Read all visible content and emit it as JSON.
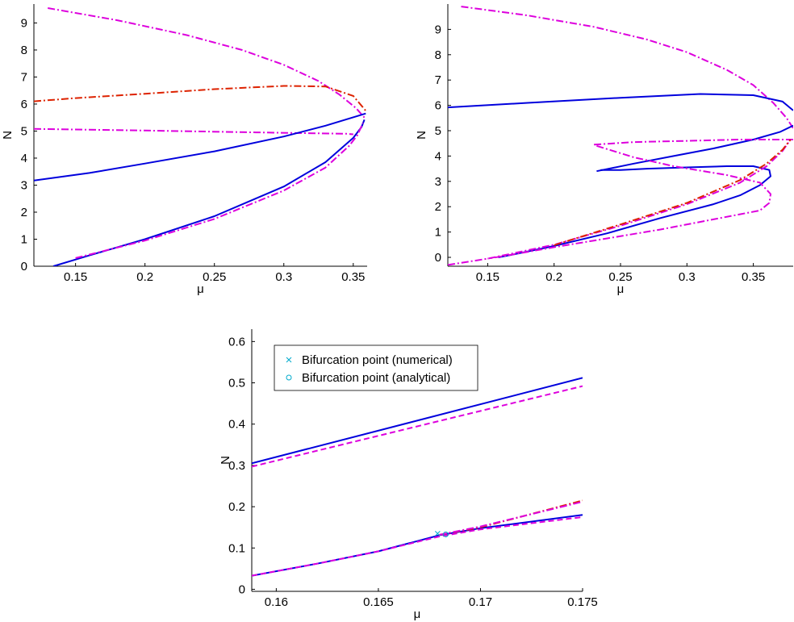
{
  "colors": {
    "blue": "#0000dd",
    "magenta": "#dd00dd",
    "red": "#dd2200",
    "cyan": "#00aacc"
  },
  "chart_data": [
    {
      "type": "line",
      "xlabel": "μ",
      "ylabel": "N",
      "xlim": [
        0.12,
        0.36
      ],
      "ylim": [
        0,
        9.7
      ],
      "xticks": [
        "0.15",
        "0.2",
        "0.25",
        "0.3",
        "0.35"
      ],
      "yticks": [
        "0",
        "1",
        "2",
        "3",
        "4",
        "5",
        "6",
        "7",
        "8",
        "9"
      ],
      "series": [
        {
          "style": "dashdot",
          "color": "magenta",
          "points": [
            [
              0.13,
              9.55
            ],
            [
              0.18,
              9.1
            ],
            [
              0.23,
              8.55
            ],
            [
              0.27,
              8.0
            ],
            [
              0.3,
              7.45
            ],
            [
              0.325,
              6.85
            ],
            [
              0.34,
              6.35
            ],
            [
              0.352,
              5.85
            ],
            [
              0.358,
              5.5
            ]
          ]
        },
        {
          "style": "dashdot",
          "color": "red",
          "points": [
            [
              0.12,
              6.1
            ],
            [
              0.15,
              6.22
            ],
            [
              0.2,
              6.38
            ],
            [
              0.25,
              6.55
            ],
            [
              0.3,
              6.67
            ],
            [
              0.33,
              6.65
            ],
            [
              0.35,
              6.3
            ],
            [
              0.359,
              5.75
            ]
          ]
        },
        {
          "style": "dashdot",
          "color": "magenta",
          "points": [
            [
              0.12,
              5.08
            ],
            [
              0.2,
              5.02
            ],
            [
              0.28,
              4.95
            ],
            [
              0.345,
              4.9
            ],
            [
              0.35,
              4.88
            ]
          ]
        },
        {
          "style": "solid",
          "color": "blue",
          "points": [
            [
              0.12,
              3.17
            ],
            [
              0.16,
              3.45
            ],
            [
              0.2,
              3.8
            ],
            [
              0.25,
              4.25
            ],
            [
              0.3,
              4.8
            ],
            [
              0.33,
              5.2
            ],
            [
              0.359,
              5.65
            ]
          ]
        },
        {
          "style": "solid",
          "color": "blue",
          "points": [
            [
              0.134,
              0.0
            ],
            [
              0.16,
              0.4
            ],
            [
              0.2,
              1.0
            ],
            [
              0.25,
              1.85
            ],
            [
              0.3,
              2.95
            ],
            [
              0.33,
              3.85
            ],
            [
              0.35,
              4.75
            ],
            [
              0.356,
              5.15
            ],
            [
              0.358,
              5.42
            ]
          ]
        },
        {
          "style": "dashdot",
          "color": "magenta",
          "points": [
            [
              0.15,
              0.3
            ],
            [
              0.2,
              0.95
            ],
            [
              0.25,
              1.75
            ],
            [
              0.3,
              2.8
            ],
            [
              0.33,
              3.65
            ],
            [
              0.347,
              4.45
            ],
            [
              0.353,
              4.85
            ],
            [
              0.357,
              5.3
            ]
          ]
        }
      ]
    },
    {
      "type": "line",
      "xlabel": "μ",
      "ylabel": "N",
      "xlim": [
        0.12,
        0.38
      ],
      "ylim": [
        -0.35,
        10.0
      ],
      "xticks": [
        "0.15",
        "0.2",
        "0.25",
        "0.3",
        "0.35"
      ],
      "yticks": [
        "0",
        "1",
        "2",
        "3",
        "4",
        "5",
        "6",
        "7",
        "8",
        "9"
      ],
      "series": [
        {
          "style": "dashdot",
          "color": "magenta",
          "points": [
            [
              0.13,
              9.9
            ],
            [
              0.18,
              9.55
            ],
            [
              0.23,
              9.1
            ],
            [
              0.27,
              8.6
            ],
            [
              0.3,
              8.1
            ],
            [
              0.33,
              7.4
            ],
            [
              0.35,
              6.8
            ],
            [
              0.365,
              6.1
            ],
            [
              0.375,
              5.5
            ],
            [
              0.38,
              5.1
            ]
          ]
        },
        {
          "style": "solid",
          "color": "blue",
          "points": [
            [
              0.12,
              5.92
            ],
            [
              0.18,
              6.1
            ],
            [
              0.25,
              6.3
            ],
            [
              0.31,
              6.45
            ],
            [
              0.35,
              6.4
            ],
            [
              0.372,
              6.15
            ],
            [
              0.38,
              5.8
            ]
          ]
        },
        {
          "style": "solid",
          "color": "blue",
          "points": [
            [
              0.235,
              3.45
            ],
            [
              0.25,
              3.45
            ],
            [
              0.27,
              3.5
            ],
            [
              0.3,
              3.55
            ],
            [
              0.33,
              3.6
            ],
            [
              0.35,
              3.6
            ],
            [
              0.362,
              3.45
            ],
            [
              0.363,
              3.2
            ],
            [
              0.355,
              2.85
            ],
            [
              0.34,
              2.45
            ],
            [
              0.32,
              2.1
            ],
            [
              0.28,
              1.55
            ],
            [
              0.24,
              0.95
            ],
            [
              0.2,
              0.45
            ],
            [
              0.17,
              0.12
            ],
            [
              0.158,
              0.0
            ]
          ]
        },
        {
          "style": "solid",
          "color": "blue",
          "points": [
            [
              0.232,
              3.4
            ],
            [
              0.26,
              3.7
            ],
            [
              0.29,
              4.0
            ],
            [
              0.32,
              4.3
            ],
            [
              0.35,
              4.65
            ],
            [
              0.37,
              4.95
            ],
            [
              0.38,
              5.2
            ]
          ]
        },
        {
          "style": "dashdot",
          "color": "magenta",
          "points": [
            [
              0.23,
              4.45
            ],
            [
              0.26,
              4.55
            ],
            [
              0.3,
              4.6
            ],
            [
              0.34,
              4.65
            ],
            [
              0.38,
              4.65
            ]
          ]
        },
        {
          "style": "dashdot",
          "color": "magenta",
          "points": [
            [
              0.232,
              4.4
            ],
            [
              0.26,
              3.95
            ],
            [
              0.29,
              3.6
            ],
            [
              0.33,
              3.25
            ],
            [
              0.355,
              2.95
            ],
            [
              0.363,
              2.5
            ],
            [
              0.362,
              2.15
            ],
            [
              0.355,
              1.85
            ],
            [
              0.32,
              1.5
            ],
            [
              0.28,
              1.1
            ],
            [
              0.24,
              0.75
            ],
            [
              0.2,
              0.4
            ],
            [
              0.17,
              0.12
            ],
            [
              0.15,
              -0.05
            ]
          ]
        },
        {
          "style": "dashdot",
          "color": "magenta",
          "points": [
            [
              0.12,
              -0.3
            ],
            [
              0.15,
              -0.05
            ],
            [
              0.2,
              0.5
            ],
            [
              0.25,
              1.25
            ],
            [
              0.3,
              2.1
            ],
            [
              0.34,
              2.95
            ],
            [
              0.36,
              3.6
            ],
            [
              0.372,
              4.2
            ],
            [
              0.378,
              4.65
            ]
          ]
        },
        {
          "style": "dashdot",
          "color": "red",
          "points": [
            [
              0.2,
              0.48
            ],
            [
              0.25,
              1.3
            ],
            [
              0.3,
              2.15
            ],
            [
              0.34,
              3.05
            ],
            [
              0.36,
              3.7
            ],
            [
              0.372,
              4.25
            ],
            [
              0.378,
              4.65
            ]
          ]
        }
      ]
    },
    {
      "type": "line",
      "xlabel": "μ",
      "ylabel": "N",
      "xlim": [
        0.1588,
        0.175
      ],
      "ylim": [
        -0.005,
        0.63
      ],
      "xticks": [
        "0.16",
        "0.165",
        "0.17",
        "0.175"
      ],
      "yticks": [
        "0",
        "0.1",
        "0.2",
        "0.3",
        "0.4",
        "0.5",
        "0.6"
      ],
      "legend": [
        "Bifurcation point (numerical)",
        "Bifurcation point (analytical)"
      ],
      "legend_position": "top-left",
      "series": [
        {
          "style": "solid",
          "color": "blue",
          "points": [
            [
              0.1588,
              0.305
            ],
            [
              0.175,
              0.512
            ]
          ]
        },
        {
          "style": "dashed",
          "color": "magenta",
          "points": [
            [
              0.1588,
              0.297
            ],
            [
              0.175,
              0.492
            ]
          ]
        },
        {
          "style": "solid",
          "color": "blue",
          "points": [
            [
              0.1588,
              0.033
            ],
            [
              0.162,
              0.062
            ],
            [
              0.165,
              0.092
            ],
            [
              0.168,
              0.131
            ],
            [
              0.17,
              0.148
            ],
            [
              0.175,
              0.18
            ]
          ]
        },
        {
          "style": "dashed",
          "color": "magenta",
          "points": [
            [
              0.1588,
              0.033
            ],
            [
              0.162,
              0.062
            ],
            [
              0.165,
              0.092
            ],
            [
              0.168,
              0.128
            ],
            [
              0.17,
              0.145
            ],
            [
              0.175,
              0.175
            ]
          ]
        },
        {
          "style": "dashdot",
          "color": "red",
          "points": [
            [
              0.168,
              0.132
            ],
            [
              0.17,
              0.15
            ],
            [
              0.175,
              0.215
            ]
          ]
        },
        {
          "style": "dashdot",
          "color": "magenta",
          "points": [
            [
              0.168,
              0.132
            ],
            [
              0.17,
              0.152
            ],
            [
              0.175,
              0.212
            ]
          ]
        }
      ],
      "markers": [
        {
          "kind": "x",
          "color": "cyan",
          "x": 0.1679,
          "y": 0.135
        },
        {
          "kind": "o",
          "color": "cyan",
          "x": 0.1683,
          "y": 0.133
        }
      ]
    }
  ]
}
